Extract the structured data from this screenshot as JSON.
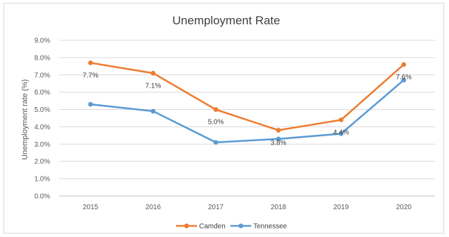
{
  "chart_data": {
    "type": "line",
    "title": "Unemployment Rate",
    "xlabel": "",
    "ylabel": "Unemployment rate (%)",
    "categories": [
      "2015",
      "2016",
      "2017",
      "2018",
      "2019",
      "2020"
    ],
    "ylim": [
      0,
      9
    ],
    "ytick_labels": [
      "0.0%",
      "1.0%",
      "2.0%",
      "3.0%",
      "4.0%",
      "5.0%",
      "6.0%",
      "7.0%",
      "8.0%",
      "9.0%"
    ],
    "grid": true,
    "legend_position": "bottom",
    "series": [
      {
        "name": "Camden",
        "color": "#ED7D31",
        "values": [
          7.7,
          7.1,
          5.0,
          3.8,
          4.4,
          7.6
        ],
        "data_labels": [
          "7.7%",
          "7.1%",
          "5.0%",
          "3.8%",
          "4.4%",
          "7.6%"
        ]
      },
      {
        "name": "Tennessee",
        "color": "#5B9BD5",
        "values": [
          5.3,
          4.9,
          3.1,
          3.3,
          3.6,
          6.7
        ]
      }
    ]
  }
}
